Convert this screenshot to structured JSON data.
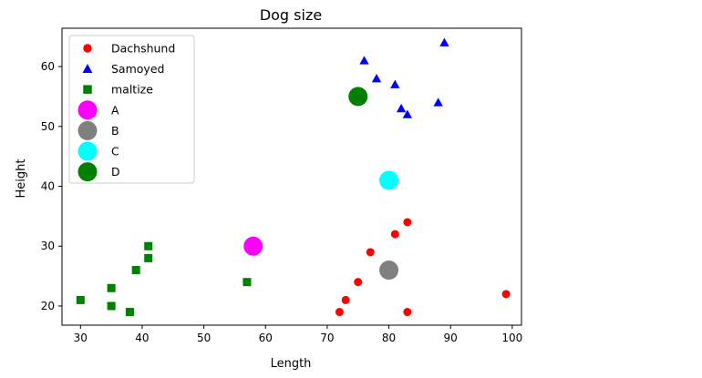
{
  "chart_data": {
    "type": "scatter",
    "title": "Dog size",
    "xlabel": "Length",
    "ylabel": "Height",
    "xlim": [
      27,
      101.5
    ],
    "ylim": [
      16.8,
      66.4
    ],
    "xticks": [
      30,
      40,
      50,
      60,
      70,
      80,
      90,
      100
    ],
    "yticks": [
      20,
      30,
      40,
      50,
      60
    ],
    "grid": false,
    "legend_position": "top-left",
    "series": [
      {
        "name": "Dachshund",
        "marker": "circle",
        "color": "#ff0000",
        "size": "small",
        "points": [
          [
            72,
            19
          ],
          [
            73,
            21
          ],
          [
            75,
            24
          ],
          [
            77,
            29
          ],
          [
            81,
            32
          ],
          [
            83,
            34
          ],
          [
            83,
            19
          ],
          [
            99,
            22
          ]
        ]
      },
      {
        "name": "Samoyed",
        "marker": "triangle",
        "color": "#0000ff",
        "size": "small",
        "points": [
          [
            76,
            61
          ],
          [
            78,
            58
          ],
          [
            81,
            57
          ],
          [
            82,
            53
          ],
          [
            83,
            52
          ],
          [
            88,
            54
          ],
          [
            89,
            64
          ]
        ]
      },
      {
        "name": "maltize",
        "marker": "square",
        "color": "#008000",
        "size": "small",
        "points": [
          [
            30,
            21
          ],
          [
            35,
            23
          ],
          [
            35,
            20
          ],
          [
            38,
            19
          ],
          [
            39,
            26
          ],
          [
            41,
            28
          ],
          [
            41,
            30
          ],
          [
            57,
            24
          ]
        ]
      },
      {
        "name": "A",
        "marker": "circle",
        "color": "#ff00ff",
        "size": "large",
        "points": [
          [
            58,
            30
          ]
        ]
      },
      {
        "name": "B",
        "marker": "circle",
        "color": "#808080",
        "size": "large",
        "points": [
          [
            80,
            26
          ]
        ]
      },
      {
        "name": "C",
        "marker": "circle",
        "color": "#00ffff",
        "size": "large",
        "points": [
          [
            80,
            41
          ]
        ]
      },
      {
        "name": "D",
        "marker": "circle",
        "color": "#008000",
        "size": "large",
        "points": [
          [
            75,
            55
          ]
        ]
      }
    ]
  }
}
